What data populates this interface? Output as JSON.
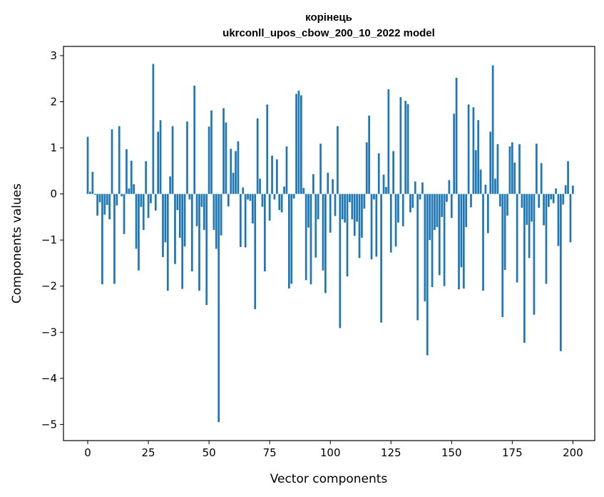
{
  "chart_data": {
    "type": "bar",
    "title": "корінець",
    "subtitle": "ukrconll_upos_cbow_200_10_2022 model",
    "xlabel": "Vector components",
    "ylabel": "Components values",
    "xlim": [
      -10,
      209
    ],
    "ylim": [
      -5.35,
      3.2
    ],
    "x_ticks": [
      0,
      25,
      50,
      75,
      100,
      125,
      150,
      175,
      200
    ],
    "y_ticks": [
      -5,
      -4,
      -3,
      -2,
      -1,
      0,
      1,
      2,
      3
    ],
    "grid": false,
    "legend": "none",
    "bar_color": "#1f77b4",
    "values": [
      1.24,
      0.05,
      0.48,
      -0.02,
      -0.47,
      -0.18,
      -1.96,
      -0.45,
      -0.24,
      -0.55,
      1.4,
      -1.95,
      -0.25,
      1.47,
      -0.05,
      -0.87,
      0.97,
      0.12,
      0.72,
      0.21,
      -1.19,
      -1.66,
      -0.28,
      -0.78,
      0.71,
      -0.52,
      -0.2,
      2.82,
      -0.36,
      1.35,
      1.6,
      -1.37,
      -1.05,
      -2.1,
      0.38,
      1.47,
      -1.52,
      -0.35,
      -0.95,
      -2.06,
      -1.14,
      1.57,
      -0.12,
      -1.68,
      2.35,
      -0.7,
      -2.1,
      -0.28,
      -0.78,
      -2.41,
      1.46,
      1.81,
      -0.78,
      -1.19,
      -4.95,
      -0.9,
      1.86,
      1.55,
      -0.27,
      0.98,
      0.46,
      0.93,
      1.14,
      -1.15,
      0.14,
      -1.16,
      -0.12,
      -0.15,
      -0.64,
      -2.5,
      1.64,
      0.33,
      -0.28,
      -1.68,
      1.94,
      -0.58,
      0.83,
      -0.12,
      0.75,
      -0.35,
      -0.4,
      0.16,
      1.03,
      -2.05,
      -1.95,
      -0.1,
      2.17,
      2.24,
      2.14,
      0.13,
      -1.87,
      -0.73,
      -1.96,
      0.43,
      -1.38,
      -0.55,
      1.09,
      -1.66,
      -2.15,
      0.46,
      -0.84,
      0.32,
      -0.48,
      1.47,
      -2.91,
      -0.55,
      -0.62,
      -1.79,
      -0.18,
      -0.55,
      -0.91,
      -0.6,
      -1.39,
      -0.95,
      -0.32,
      1.12,
      1.7,
      -1.42,
      -0.12,
      -1.36,
      0.88,
      -2.79,
      0.42,
      0.15,
      2.27,
      -1.27,
      0.93,
      -1.14,
      -0.62,
      2.1,
      -0.7,
      2.02,
      1.95,
      -0.4,
      -0.3,
      0.27,
      -2.74,
      -0.12,
      0.25,
      -2.33,
      -3.5,
      -1.0,
      -2.02,
      -0.78,
      -0.72,
      -1.76,
      -0.5,
      -2.0,
      -0.17,
      0.3,
      -0.52,
      1.74,
      2.52,
      -2.07,
      -1.59,
      -2.05,
      -0.72,
      1.94,
      -0.29,
      1.88,
      0.95,
      1.6,
      0.53,
      -2.1,
      0.2,
      -0.85,
      1.35,
      2.79,
      0.33,
      1.08,
      -0.27,
      -2.67,
      -1.65,
      -0.47,
      1.03,
      1.12,
      0.68,
      -1.92,
      1.08,
      -0.3,
      -3.23,
      -0.67,
      -1.39,
      -0.6,
      -2.62,
      1.09,
      -0.3,
      0.67,
      -0.68,
      -1.95,
      -0.28,
      -0.12,
      -0.2,
      0.12,
      -1.13,
      -3.41,
      -0.23,
      0.19,
      0.71,
      -1.05,
      0.18
    ]
  }
}
